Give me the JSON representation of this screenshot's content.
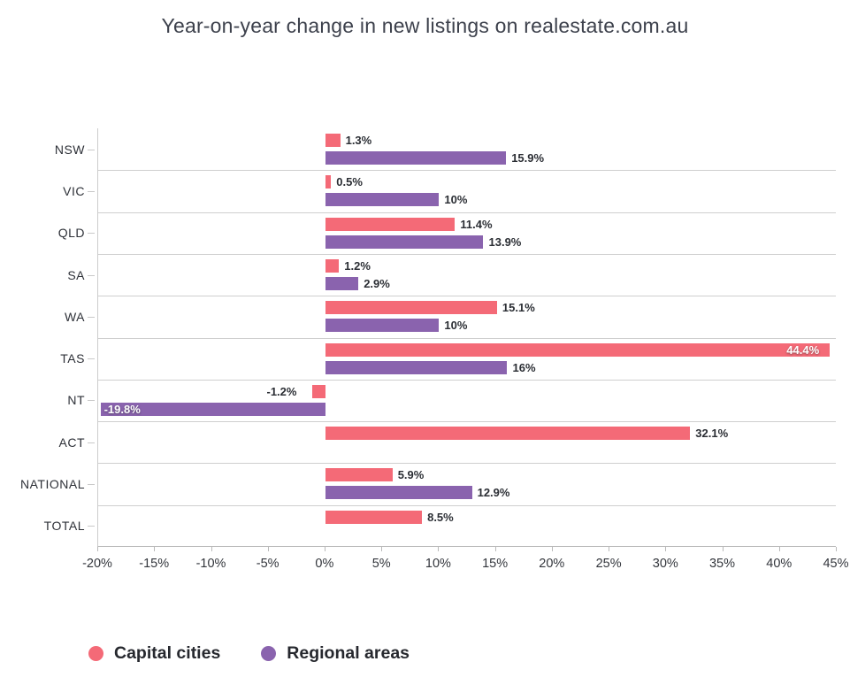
{
  "title": "Year-on-year change in new listings on realestate.com.au",
  "chart_data": {
    "type": "bar",
    "orientation": "horizontal",
    "title": "Year-on-year change in new listings on realestate.com.au",
    "categories": [
      "NSW",
      "VIC",
      "QLD",
      "SA",
      "WA",
      "TAS",
      "NT",
      "ACT",
      "NATIONAL",
      "TOTAL"
    ],
    "series": [
      {
        "name": "Capital cities",
        "color": "#f46a77",
        "values": [
          1.3,
          0.5,
          11.4,
          1.2,
          15.1,
          44.4,
          -1.2,
          32.1,
          5.9,
          8.5
        ],
        "labels": [
          "1.3%",
          "0.5%",
          "11.4%",
          "1.2%",
          "15.1%",
          "44.4%",
          "-1.2%",
          "32.1%",
          "5.9%",
          "8.5%"
        ]
      },
      {
        "name": "Regional areas",
        "color": "#8a63ae",
        "values": [
          15.9,
          10,
          13.9,
          2.9,
          10,
          16,
          -19.8,
          null,
          12.9,
          null
        ],
        "labels": [
          "15.9%",
          "10%",
          "13.9%",
          "2.9%",
          "10%",
          "16%",
          "-19.8%",
          null,
          "12.9%",
          null
        ]
      }
    ],
    "xlim": [
      -20,
      45
    ],
    "x_tick_values": [
      -20,
      -15,
      -10,
      -5,
      0,
      5,
      10,
      15,
      20,
      25,
      30,
      35,
      40,
      45
    ],
    "x_tick_labels": [
      "-20%",
      "-15%",
      "-10%",
      "-5%",
      "0%",
      "5%",
      "10%",
      "15%",
      "20%",
      "25%",
      "30%",
      "35%",
      "40%",
      "45%"
    ],
    "grid": "horizontal-row-separators",
    "legend_position": "bottom-left"
  },
  "legend": {
    "items": [
      {
        "label": "Capital cities",
        "color": "#f46a77"
      },
      {
        "label": "Regional areas",
        "color": "#8a63ae"
      }
    ]
  }
}
